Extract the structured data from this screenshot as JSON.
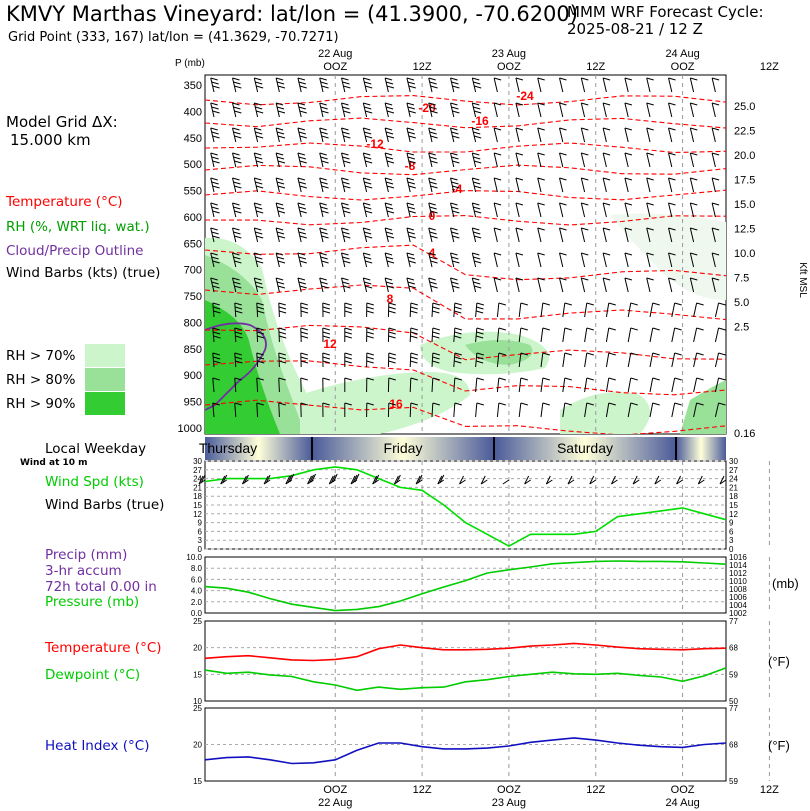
{
  "header": {
    "title": "KMVY Marthas Vineyard:  lat/lon = (41.3900, -70.6200)",
    "subtitle": "Grid Point (333, 167) lat/lon = (41.3629, -70.7271)",
    "cycle_label": "MMM WRF Forecast Cycle:",
    "cycle_value": "2025-08-21 / 12  Z"
  },
  "left_panel": {
    "grid_dx_line1": "Model Grid ΔX:",
    "grid_dx_line2": "15.000 km",
    "legend": [
      {
        "label": "Temperature (°C)",
        "color": "#ff0000"
      },
      {
        "label": "RH (%, WRT liq. wat.)",
        "color": "#00a000"
      },
      {
        "label": "Cloud/Precip Outline",
        "color": "#7030a0"
      },
      {
        "label": "Wind Barbs (kts) (true)",
        "color": "#000000"
      }
    ],
    "rh_legend": [
      {
        "label": "RH > 70%",
        "color": "#ccf5cc"
      },
      {
        "label": "RH > 80%",
        "color": "#99e099"
      },
      {
        "label": "RH > 90%",
        "color": "#33cc33"
      }
    ],
    "surface_labels": {
      "weekday": "Local Weekday",
      "wind_at": "Wind at 10 m",
      "wind_spd": "Wind Spd (kts)",
      "wind_barbs": "Wind Barbs (true)",
      "precip1": "Precip (mm)",
      "precip2": "3-hr accum",
      "precip3": "72h total 0.00 in",
      "pressure": "Pressure (mb)",
      "temperature": "Temperature (°C)",
      "dewpoint": "Dewpoint (°C)",
      "heat_index": "Heat Index (°C)"
    }
  },
  "colors": {
    "temp": "#ff0000",
    "rh": "#00c000",
    "cloud": "#7030a0",
    "dew": "#00cc00",
    "heat": "#1010c0",
    "wind": "#00dd00",
    "pressure": "#00cc00"
  },
  "chart_data": [
    {
      "type": "heatmap",
      "title": "Time-height cross section",
      "ylabel": "P (mb)",
      "y_ticks_mb": [
        350,
        400,
        450,
        500,
        550,
        600,
        650,
        700,
        750,
        800,
        850,
        900,
        950,
        1000
      ],
      "y_right_label": "Kft MSL",
      "y_right_ticks": [
        "25.0",
        "22.5",
        "20.0",
        "17.5",
        "15.0",
        "12.5",
        "10.0",
        "7.5",
        "5.0",
        "2.5",
        "0.16"
      ],
      "x_top_ticks": [
        "OOZ",
        "12Z",
        "OOZ",
        "12Z",
        "OOZ",
        "12Z"
      ],
      "x_top_dates": [
        "22 Aug",
        "23 Aug",
        "24 Aug"
      ],
      "temp_contour_labels": [
        "-24",
        "-20",
        "-16",
        "-12",
        "-8",
        "-4",
        "0",
        "4",
        "8",
        "12",
        "16"
      ]
    },
    {
      "type": "bar",
      "title": "Local Weekday",
      "categories": [
        "Thursday",
        "Friday",
        "Saturday"
      ]
    },
    {
      "type": "line",
      "title": "Wind Spd (kts)",
      "x_hours": [
        0,
        3,
        6,
        9,
        12,
        15,
        18,
        21,
        24,
        27,
        30,
        33,
        36,
        39,
        42,
        45,
        48,
        51,
        54,
        57,
        60,
        63,
        66,
        69,
        72
      ],
      "series": [
        {
          "name": "Wind Spd (kts)",
          "values": [
            23,
            24,
            24,
            24,
            25,
            27,
            28,
            27,
            24,
            21,
            20,
            15,
            9,
            5,
            1,
            5,
            5,
            5,
            6,
            11,
            12,
            13,
            14,
            12,
            10
          ]
        }
      ],
      "ylim": [
        0,
        30
      ],
      "y_ticks": [
        0,
        3,
        6,
        9,
        12,
        15,
        18,
        21,
        24,
        27,
        30
      ]
    },
    {
      "type": "line",
      "title": "Pressure (mb)",
      "x_hours": [
        0,
        3,
        6,
        9,
        12,
        15,
        18,
        21,
        24,
        27,
        30,
        33,
        36,
        39,
        42,
        45,
        48,
        51,
        54,
        57,
        60,
        63,
        66,
        69,
        72
      ],
      "series": [
        {
          "name": "Pressure (mb)",
          "values": [
            1008.6,
            1008.2,
            1007.2,
            1005.6,
            1004.2,
            1003.4,
            1002.6,
            1002.9,
            1003.6,
            1005.0,
            1006.8,
            1008.5,
            1010.1,
            1012.0,
            1012.8,
            1013.5,
            1014.3,
            1014.6,
            1014.9,
            1015.0,
            1014.9,
            1014.9,
            1014.8,
            1014.5,
            1014.2
          ]
        }
      ],
      "ylim": [
        1002,
        1016
      ],
      "y_left_ticks": [
        "0.0",
        "2.0",
        "4.0",
        "6.0",
        "8.0",
        "10.0"
      ],
      "y_right_ticks": [
        1002,
        1004,
        1006,
        1008,
        1010,
        1012,
        1014,
        1016
      ],
      "y_unit": "(mb)"
    },
    {
      "type": "line",
      "title": "Temperature / Dewpoint",
      "x_hours": [
        0,
        3,
        6,
        9,
        12,
        15,
        18,
        21,
        24,
        27,
        30,
        33,
        36,
        39,
        42,
        45,
        48,
        51,
        54,
        57,
        60,
        63,
        66,
        69,
        72
      ],
      "series": [
        {
          "name": "Temperature (°C)",
          "values": [
            18.0,
            18.3,
            18.5,
            18.1,
            17.7,
            17.6,
            17.8,
            18.3,
            19.8,
            20.5,
            20.0,
            19.6,
            19.6,
            19.7,
            19.9,
            20.3,
            20.5,
            20.8,
            20.5,
            20.1,
            19.8,
            19.7,
            19.6,
            19.8,
            19.9
          ]
        },
        {
          "name": "Dewpoint (°C)",
          "values": [
            15.8,
            15.2,
            15.4,
            14.9,
            14.6,
            13.6,
            13.0,
            12.0,
            12.6,
            12.2,
            12.5,
            12.6,
            13.6,
            14.0,
            14.6,
            15.0,
            15.4,
            15.1,
            15.0,
            15.2,
            14.8,
            14.5,
            13.7,
            14.7,
            16.2
          ]
        }
      ],
      "ylim": [
        10,
        25
      ],
      "y_ticks": [
        10,
        15,
        20,
        25
      ],
      "y_right_ticks": [
        50,
        59,
        68,
        77
      ],
      "y_unit": "(°F)"
    },
    {
      "type": "line",
      "title": "Heat Index (°C)",
      "x_hours": [
        0,
        3,
        6,
        9,
        12,
        15,
        18,
        21,
        24,
        27,
        30,
        33,
        36,
        39,
        42,
        45,
        48,
        51,
        54,
        57,
        60,
        63,
        66,
        69,
        72
      ],
      "series": [
        {
          "name": "Heat Index (°C)",
          "values": [
            17.9,
            18.2,
            18.3,
            17.9,
            17.4,
            17.5,
            17.9,
            19.2,
            20.2,
            20.2,
            19.7,
            19.4,
            19.4,
            19.5,
            19.8,
            20.3,
            20.6,
            20.9,
            20.6,
            20.2,
            19.9,
            19.7,
            19.6,
            20.0,
            20.2
          ]
        }
      ],
      "ylim": [
        15,
        25
      ],
      "y_ticks": [
        15,
        20,
        25
      ],
      "y_right_ticks": [
        59,
        68,
        77
      ],
      "y_unit": "(°F)",
      "x_bottom_ticks": [
        "OOZ",
        "12Z",
        "OOZ",
        "12Z",
        "OOZ",
        "12Z"
      ],
      "x_bottom_dates": [
        "22 Aug",
        "23 Aug",
        "24 Aug"
      ]
    }
  ]
}
